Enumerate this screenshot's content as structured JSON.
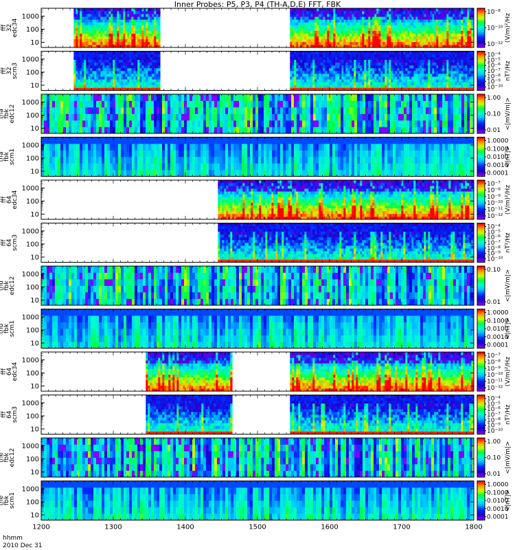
{
  "page": {
    "title": "Inner Probes: P5, P3, P4 (TH-A,D,E) FFT, FBK",
    "footer_line1": "hhmm",
    "footer_line2": "2010 Dec 31"
  },
  "colors": {
    "low": "#7f00ff",
    "mid_low": "#0030ff",
    "mid": "#00ffff",
    "mid_high": "#00ff30",
    "high": "#ffff00",
    "top": "#ff0000",
    "gap": "#ffffff",
    "frame": "#000000"
  },
  "chart_data": {
    "type": "heatmap",
    "title": "Inner Probes: P5, P3, P4 (TH-A,D,E) FFT, FBK",
    "x_ticks": [
      "1200",
      "1300",
      "1400",
      "1500",
      "1600",
      "1700",
      "1800"
    ],
    "xlim": [
      1200,
      1800
    ],
    "x_units": "hhmm",
    "date": "2010 Dec 31",
    "panels": [
      {
        "ylabel": [
          "tha",
          "fff",
          "32",
          "edc34"
        ],
        "yticks": [
          "1000",
          "100",
          "10"
        ],
        "ylog": true,
        "colorbar_ticks": [
          "10⁻⁸",
          "10⁻¹⁰",
          "10⁻¹²"
        ],
        "units": "(V/m)²/Hz",
        "data_intervals": [
          [
            1245,
            1365
          ],
          [
            1545,
            1800
          ]
        ],
        "kind": "fff_e"
      },
      {
        "ylabel": [
          "tha",
          "fff",
          "32",
          "scm3"
        ],
        "yticks": [
          "1000",
          "100",
          "10"
        ],
        "ylog": true,
        "colorbar_ticks": [
          "10⁻⁴",
          "10⁻⁵",
          "10⁻⁶",
          "10⁻⁷",
          "10⁻⁸",
          "10⁻⁹",
          "10⁻¹⁰"
        ],
        "units": "nT²/Hz",
        "data_intervals": [
          [
            1245,
            1365
          ],
          [
            1545,
            1800
          ]
        ],
        "kind": "fff_b"
      },
      {
        "ylabel": [
          "tha",
          "fbk",
          "edc12"
        ],
        "yticks": [
          "1000",
          "100",
          "10"
        ],
        "ylog": true,
        "colorbar_ticks": [
          "1.00",
          "0.10",
          "0.01"
        ],
        "units": "<|mV/m|>",
        "data_intervals": [
          [
            1200,
            1800
          ]
        ],
        "kind": "fbk_e"
      },
      {
        "ylabel": [
          "tha",
          "fbk",
          "scm1"
        ],
        "yticks": [
          "1000",
          "100",
          "10"
        ],
        "ylog": true,
        "colorbar_ticks": [
          "1.0000",
          "0.1000",
          "0.0100",
          "0.0010",
          "0.0001"
        ],
        "units": "<|nT|>",
        "data_intervals": [
          [
            1200,
            1800
          ]
        ],
        "kind": "fbk_b"
      },
      {
        "ylabel": [
          "thd",
          "fff",
          "64",
          "edc34"
        ],
        "yticks": [
          "1000",
          "100",
          "10"
        ],
        "ylog": true,
        "colorbar_ticks": [
          "10⁻⁷",
          "10⁻⁸",
          "10⁻⁹",
          "10⁻¹⁰",
          "10⁻¹¹",
          "10⁻¹²"
        ],
        "units": "(V/m)²/Hz",
        "data_intervals": [
          [
            1445,
            1800
          ]
        ],
        "kind": "fff_e"
      },
      {
        "ylabel": [
          "thd",
          "fff",
          "64",
          "scm3"
        ],
        "yticks": [
          "1000",
          "100",
          "10"
        ],
        "ylog": true,
        "colorbar_ticks": [
          "10⁻⁴",
          "10⁻⁵",
          "10⁻⁶",
          "10⁻⁷",
          "10⁻⁸",
          "10⁻⁹",
          "10⁻¹⁰"
        ],
        "units": "nT²/Hz",
        "data_intervals": [
          [
            1445,
            1800
          ]
        ],
        "kind": "fff_b"
      },
      {
        "ylabel": [
          "thd",
          "fbk",
          "edc12"
        ],
        "yticks": [
          "1000",
          "100",
          "10"
        ],
        "ylog": true,
        "colorbar_ticks": [
          "0.10",
          "0.01"
        ],
        "units": "<|mV/m|>",
        "data_intervals": [
          [
            1200,
            1800
          ]
        ],
        "kind": "fbk_e"
      },
      {
        "ylabel": [
          "thd",
          "fbk",
          "scm1"
        ],
        "yticks": [
          "1000",
          "100",
          "10"
        ],
        "ylog": true,
        "colorbar_ticks": [
          "1.0000",
          "0.1000",
          "0.0100",
          "0.0010",
          "0.0001"
        ],
        "units": "<|nT|>",
        "data_intervals": [
          [
            1200,
            1800
          ]
        ],
        "kind": "fbk_b"
      },
      {
        "ylabel": [
          "the",
          "fff",
          "64",
          "edc34"
        ],
        "yticks": [
          "1000",
          "100",
          "10"
        ],
        "ylog": true,
        "colorbar_ticks": [
          "10⁻⁷",
          "10⁻⁸",
          "10⁻⁹",
          "10⁻¹⁰",
          "10⁻¹¹",
          "10⁻¹²"
        ],
        "units": "(V/m)²/Hz",
        "data_intervals": [
          [
            1345,
            1465
          ],
          [
            1545,
            1800
          ]
        ],
        "kind": "fff_e"
      },
      {
        "ylabel": [
          "the",
          "fff",
          "64",
          "scm3"
        ],
        "yticks": [
          "1000",
          "100",
          "10"
        ],
        "ylog": true,
        "colorbar_ticks": [
          "10⁻⁴",
          "10⁻⁵",
          "10⁻⁶",
          "10⁻⁷",
          "10⁻⁸",
          "10⁻⁹",
          "10⁻¹⁰"
        ],
        "units": "nT²/Hz",
        "data_intervals": [
          [
            1345,
            1465
          ],
          [
            1545,
            1800
          ]
        ],
        "kind": "fff_b"
      },
      {
        "ylabel": [
          "the",
          "fbk",
          "edc12"
        ],
        "yticks": [
          "1000",
          "100",
          "10"
        ],
        "ylog": true,
        "colorbar_ticks": [
          "1.00",
          "0.10",
          "0.01"
        ],
        "units": "<|mV/m|>",
        "data_intervals": [
          [
            1200,
            1800
          ]
        ],
        "kind": "fbk_e"
      },
      {
        "ylabel": [
          "the",
          "fbk",
          "scm1"
        ],
        "yticks": [
          "1000",
          "100",
          "10"
        ],
        "ylog": true,
        "colorbar_ticks": [
          "1.0000",
          "0.1000",
          "0.0100",
          "0.0010",
          "0.0001"
        ],
        "units": "<|nT|>",
        "data_intervals": [
          [
            1200,
            1800
          ]
        ],
        "kind": "fbk_b"
      }
    ]
  }
}
